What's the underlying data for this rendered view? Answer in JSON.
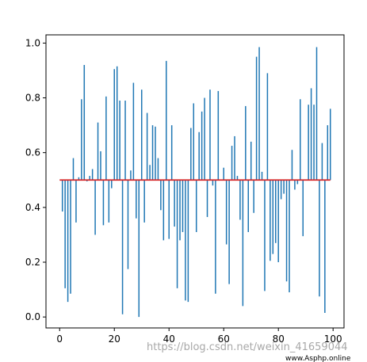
{
  "chart_data": {
    "type": "bar",
    "subtype": "stem",
    "baseline": 0.5,
    "x": [
      0,
      1,
      2,
      3,
      4,
      5,
      6,
      7,
      8,
      9,
      10,
      11,
      12,
      13,
      14,
      15,
      16,
      17,
      18,
      19,
      20,
      21,
      22,
      23,
      24,
      25,
      26,
      27,
      28,
      29,
      30,
      31,
      32,
      33,
      34,
      35,
      36,
      37,
      38,
      39,
      40,
      41,
      42,
      43,
      44,
      45,
      46,
      47,
      48,
      49,
      50,
      51,
      52,
      53,
      54,
      55,
      56,
      57,
      58,
      59,
      60,
      61,
      62,
      63,
      64,
      65,
      66,
      67,
      68,
      69,
      70,
      71,
      72,
      73,
      74,
      75,
      76,
      77,
      78,
      79,
      80,
      81,
      82,
      83,
      84,
      85,
      86,
      87,
      88,
      89,
      90,
      91,
      92,
      93,
      94,
      95,
      96,
      97,
      98,
      99
    ],
    "values": [
      0.5,
      0.385,
      0.105,
      0.055,
      0.085,
      0.58,
      0.345,
      0.51,
      0.795,
      0.92,
      0.495,
      0.515,
      0.54,
      0.3,
      0.71,
      0.605,
      0.335,
      0.805,
      0.345,
      0.47,
      0.905,
      0.915,
      0.79,
      0.01,
      0.79,
      0.175,
      0.535,
      0.855,
      0.36,
      0.0,
      0.83,
      0.345,
      0.745,
      0.555,
      0.7,
      0.695,
      0.58,
      0.39,
      0.28,
      0.935,
      0.285,
      0.7,
      0.33,
      0.105,
      0.28,
      0.31,
      0.06,
      0.055,
      0.69,
      0.78,
      0.31,
      0.675,
      0.75,
      0.8,
      0.365,
      0.83,
      0.48,
      0.085,
      0.825,
      0.5,
      0.545,
      0.265,
      0.12,
      0.625,
      0.66,
      0.515,
      0.355,
      0.04,
      0.77,
      0.31,
      0.64,
      0.38,
      0.95,
      0.985,
      0.53,
      0.095,
      0.89,
      0.205,
      0.23,
      0.27,
      0.2,
      0.43,
      0.45,
      0.13,
      0.09,
      0.61,
      0.465,
      0.485,
      0.795,
      0.295,
      0.5,
      0.775,
      0.835,
      0.775,
      0.985,
      0.075,
      0.635,
      0.015,
      0.7,
      0.76
    ],
    "xlim": [
      -5,
      104
    ],
    "ylim": [
      -0.04,
      1.03
    ],
    "x_ticks": [
      "0",
      "20",
      "40",
      "60",
      "80",
      "100"
    ],
    "y_ticks": [
      "0.0",
      "0.2",
      "0.4",
      "0.6",
      "0.8",
      "1.0"
    ],
    "title": "",
    "xlabel": "",
    "ylabel": "",
    "grid": false,
    "legend": "none",
    "colors": {
      "stem": "#1f77b4",
      "baseline": "#d62728",
      "axes": "#000000"
    }
  },
  "watermark": {
    "text": "https://blog.csdn.net/weixin_41659044",
    "site": "www.Asphp.online"
  }
}
